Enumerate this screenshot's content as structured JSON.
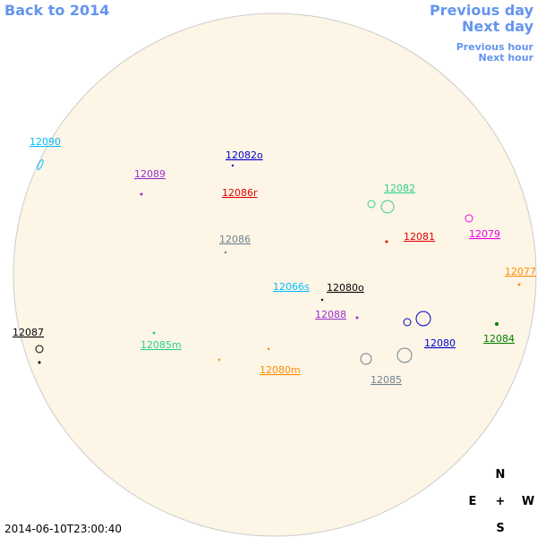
{
  "nav": {
    "back": "Back to 2014",
    "previous_day": "Previous day",
    "next_day": "Next day",
    "previous_hour": "Previous hour",
    "next_hour": "Next hour"
  },
  "timestamp": "2014-06-10T23:00:40",
  "compass": {
    "north": "N",
    "east": "E",
    "center": "+",
    "west": "W",
    "south": "S"
  },
  "regions": [
    {
      "label": "12090",
      "color": "#00bfff"
    },
    {
      "label": "12082o",
      "color": "#0000cd"
    },
    {
      "label": "12089",
      "color": "#9932cc"
    },
    {
      "label": "12086r",
      "color": "#dd0000"
    },
    {
      "label": "12082",
      "color": "#2fcf8f"
    },
    {
      "label": "12086",
      "color": "#708090"
    },
    {
      "label": "12081",
      "color": "#dd0000"
    },
    {
      "label": "12079",
      "color": "#ee00ee"
    },
    {
      "label": "12077",
      "color": "#ff8c00"
    },
    {
      "label": "12066s",
      "color": "#00bfff"
    },
    {
      "label": "12080o",
      "color": "#000000"
    },
    {
      "label": "12088",
      "color": "#9932cc"
    },
    {
      "label": "12087",
      "color": "#000000"
    },
    {
      "label": "12085m",
      "color": "#2fcf8f"
    },
    {
      "label": "12080",
      "color": "#0000cd"
    },
    {
      "label": "12084",
      "color": "#008000"
    },
    {
      "label": "12080m",
      "color": "#ff8c00"
    },
    {
      "label": "12085",
      "color": "#708090"
    }
  ]
}
